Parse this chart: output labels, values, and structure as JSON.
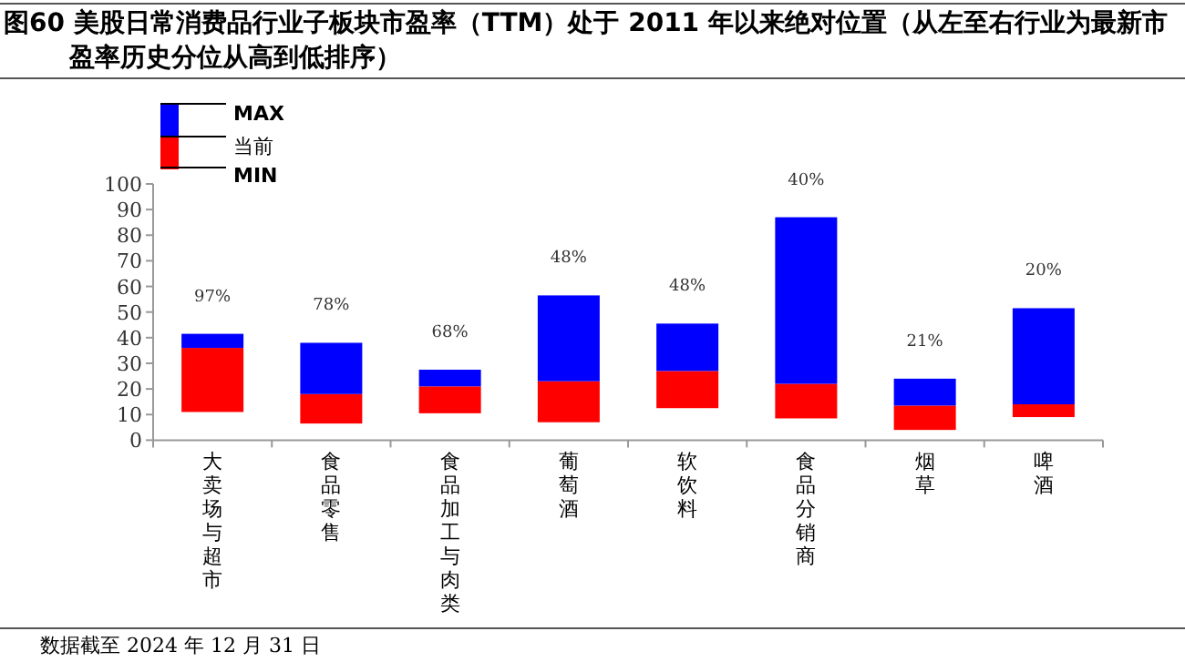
{
  "chart_data": {
    "type": "bar",
    "title": "图60 美股日常消费品行业子板块市盈率（TTM）处于 2011 年以来绝对位置（从左至右行业为最新市盈率历史分位从高到低排序）",
    "categories": [
      "大卖场与超市",
      "食品零售",
      "食品加工与肉类",
      "葡萄酒",
      "软饮料",
      "食品分销商",
      "烟草",
      "啤酒"
    ],
    "series": [
      {
        "color": "#ff0000",
        "base": [
          11,
          6.5,
          10.5,
          7,
          12.5,
          8.5,
          4,
          9
        ],
        "values": [
          25,
          11.5,
          10.5,
          16,
          14.5,
          13.5,
          9.5,
          5
        ]
      },
      {
        "color": "#0000ff",
        "base": [
          36,
          18,
          21,
          23,
          27,
          22,
          13.5,
          14
        ],
        "values": [
          5.5,
          20,
          6.5,
          33.5,
          18.5,
          65,
          10.5,
          37.5
        ]
      }
    ],
    "ylim": [
      0,
      100
    ],
    "yticks": [
      0,
      10,
      20,
      30,
      40,
      50,
      60,
      70,
      80,
      90,
      100
    ],
    "annotations": [
      "MAX",
      "当前",
      "MIN",
      "数据截至 2024 年 12 月 31 日",
      "97%",
      "78%",
      "68%",
      "48%",
      "48%",
      "40%",
      "21%",
      "20%"
    ]
  }
}
